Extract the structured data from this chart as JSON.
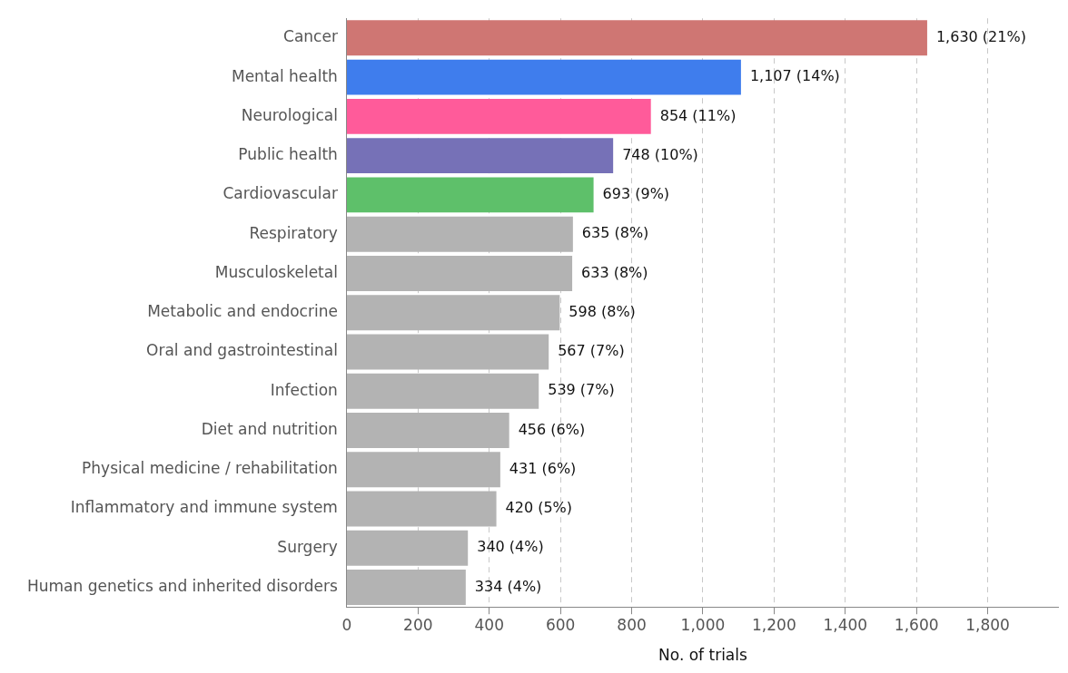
{
  "chart_data": {
    "type": "bar",
    "orientation": "horizontal",
    "xlabel": "No. of trials",
    "categories": [
      "Cancer",
      "Mental health",
      "Neurological",
      "Public health",
      "Cardiovascular",
      "Respiratory",
      "Musculoskeletal",
      "Metabolic and endocrine",
      "Oral and gastrointestinal",
      "Infection",
      "Diet and nutrition",
      "Physical medicine / rehabilitation",
      "Inflammatory and immune system",
      "Surgery",
      "Human genetics and inherited disorders"
    ],
    "values": [
      1630,
      1107,
      854,
      748,
      693,
      635,
      633,
      598,
      567,
      539,
      456,
      431,
      420,
      340,
      334
    ],
    "colors": [
      "#cf7673",
      "#3f7ded",
      "#ff5b9a",
      "#7671b7",
      "#5ec06a",
      "#b3b3b3",
      "#b3b3b3",
      "#b3b3b3",
      "#b3b3b3",
      "#b3b3b3",
      "#b3b3b3",
      "#b3b3b3",
      "#b3b3b3",
      "#b3b3b3",
      "#b3b3b3"
    ],
    "value_labels": [
      "1,630 (21%)",
      "1,107 (14%)",
      "854 (11%)",
      "748 (10%)",
      "693 (9%)",
      "635 (8%)",
      "633 (8%)",
      "598 (8%)",
      "567 (7%)",
      "539 (7%)",
      "456 (6%)",
      "431 (6%)",
      "420 (5%)",
      "340 (4%)",
      "334 (4%)"
    ],
    "xlim": [
      0,
      2000
    ],
    "xticks": [
      0,
      200,
      400,
      600,
      800,
      {
        "value": 1000,
        "label": "1,000"
      },
      {
        "value": 1200,
        "label": "1,200"
      },
      {
        "value": 1400,
        "label": "1,400"
      },
      {
        "value": 1600,
        "label": "1,600"
      },
      {
        "value": 1800,
        "label": "1,800"
      }
    ],
    "grid": "x"
  }
}
